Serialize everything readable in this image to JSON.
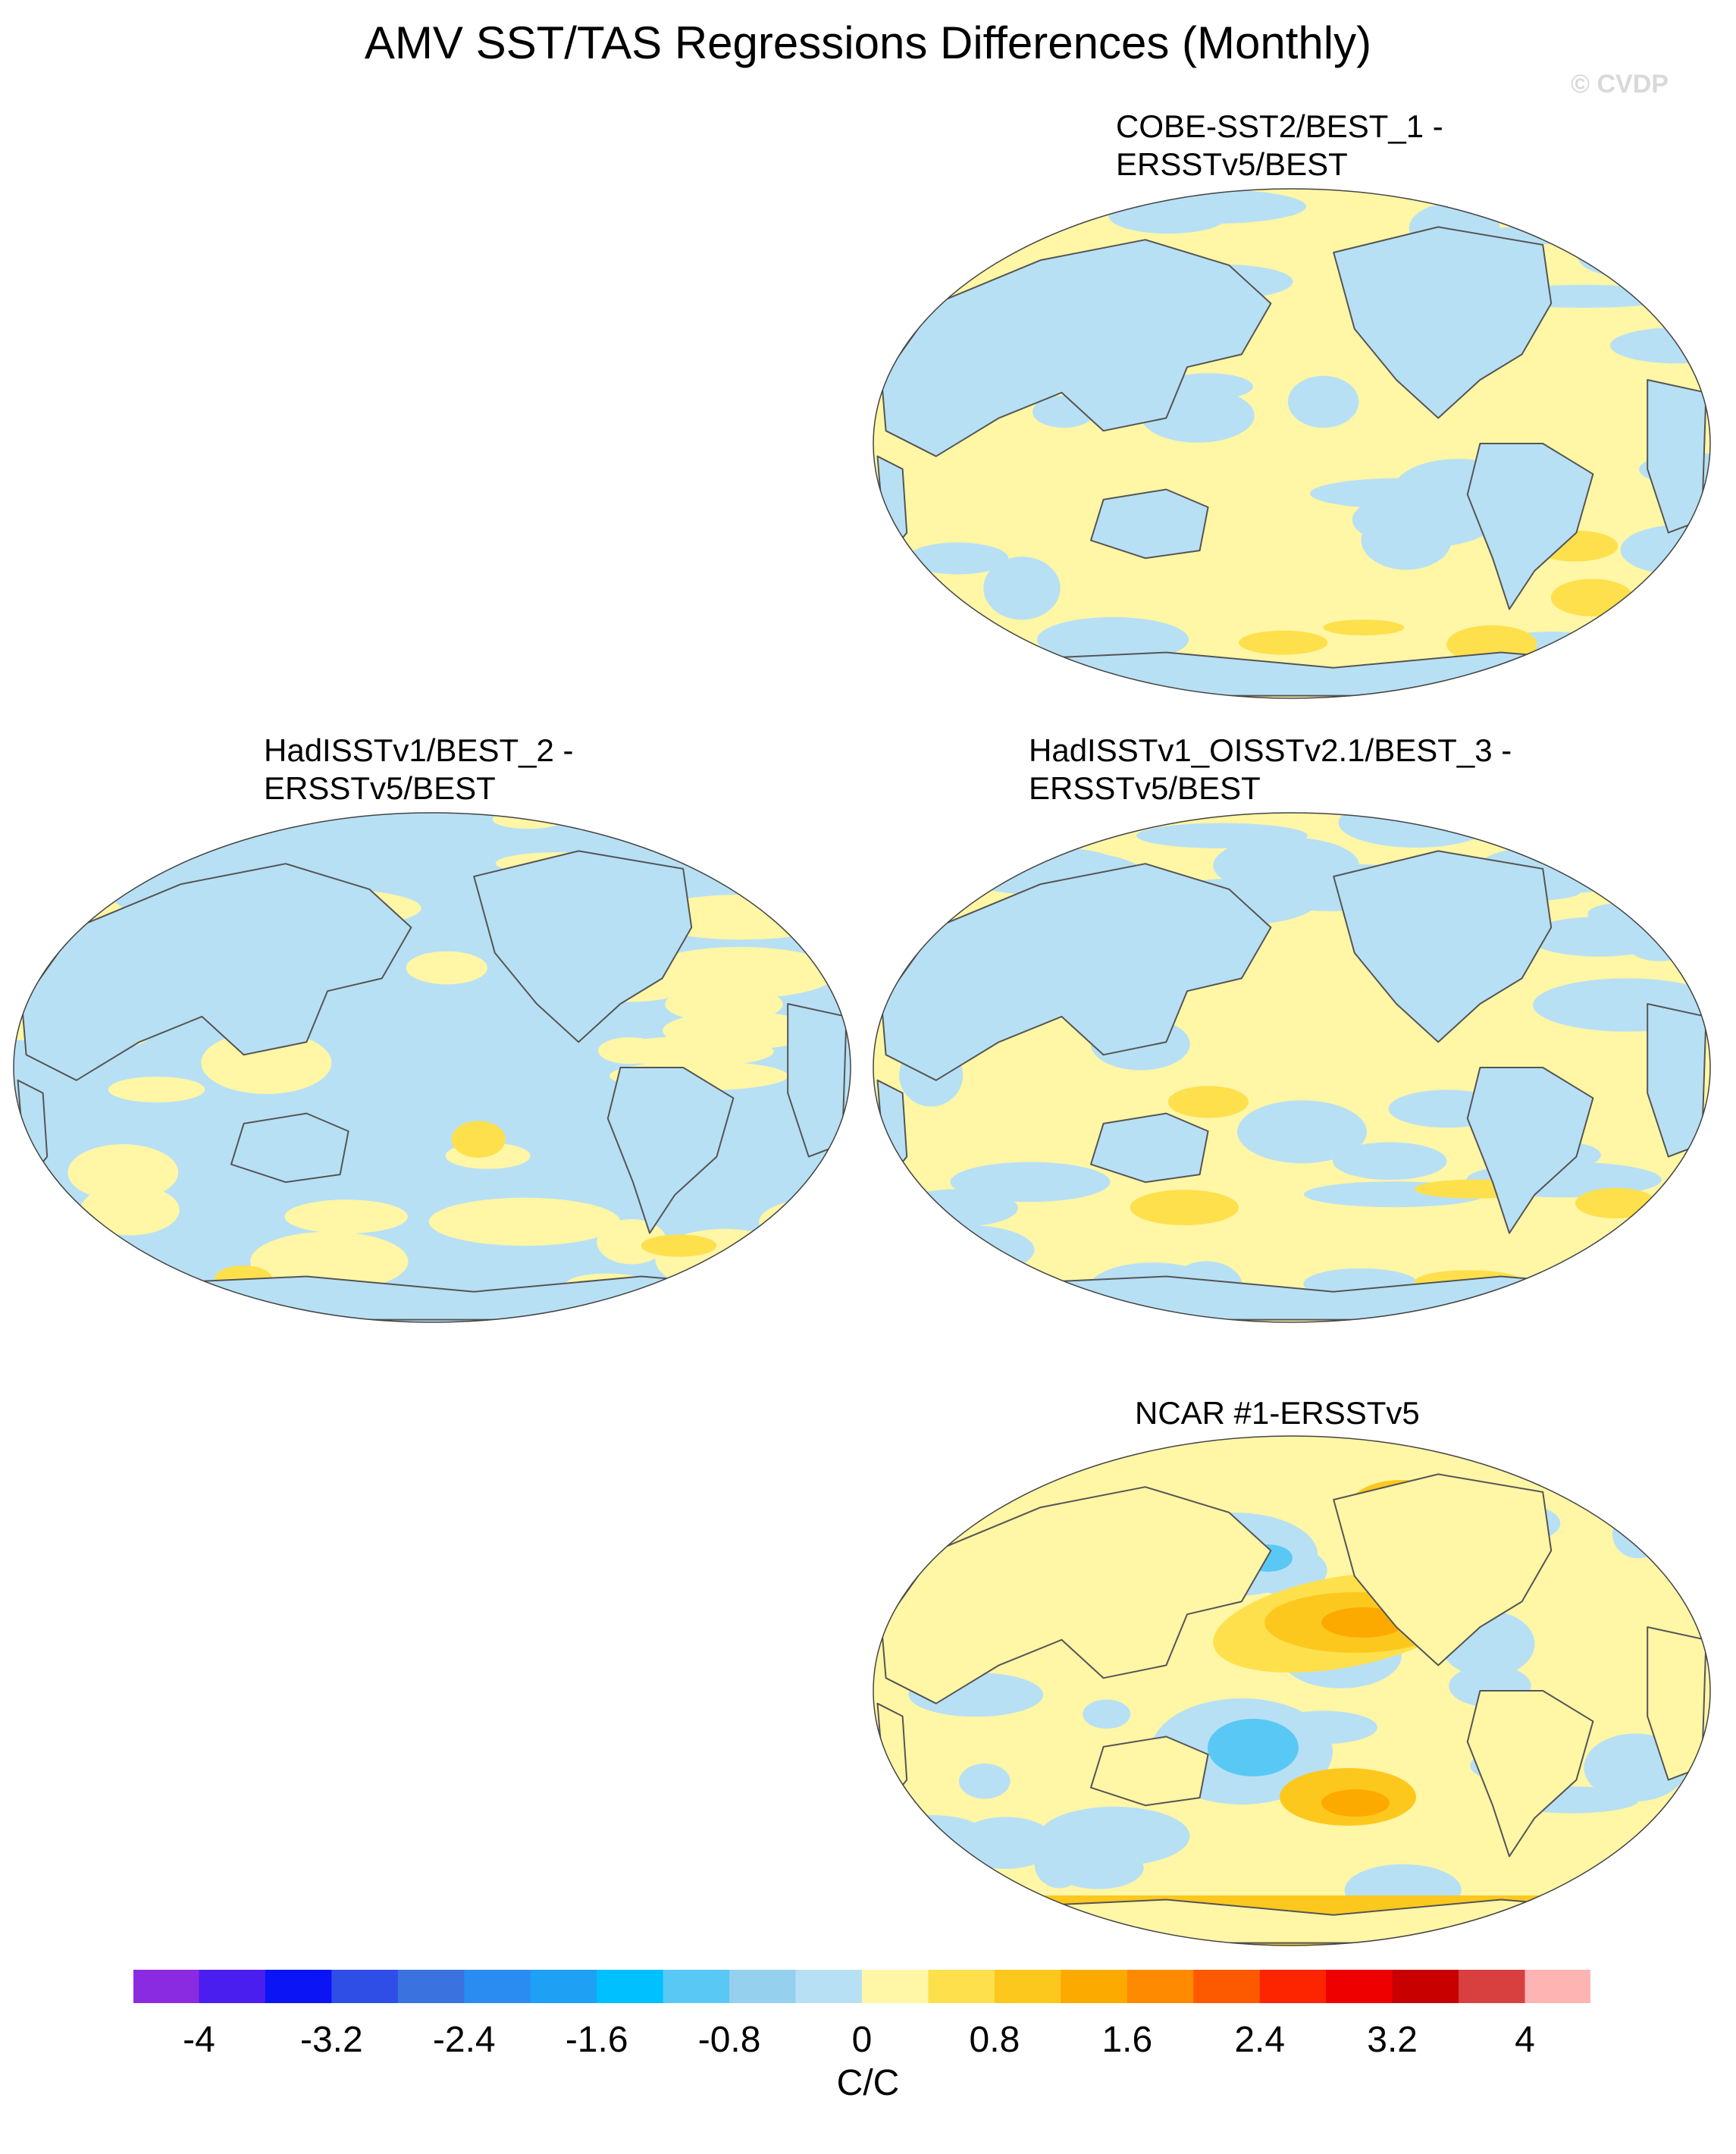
{
  "title": "AMV SST/TAS Regressions Differences (Monthly)",
  "watermark": "© CVDP",
  "panels": [
    {
      "label": "COBE-SST2/BEST_1 -\nERSSTv5/BEST",
      "pattern": "weak-positive-mixed"
    },
    {
      "label": "HadISSTv1/BEST_2 -\nERSSTv5/BEST",
      "pattern": "weak-negative-mixed"
    },
    {
      "label": "HadISSTv1_OISSTv2.1/BEST_3 -\nERSSTv5/BEST",
      "pattern": "weak-positive-mixed"
    },
    {
      "label": "NCAR #1-ERSSTv5",
      "pattern": "strong-pacific-dipole"
    }
  ],
  "colorbar": {
    "unit": "C/C",
    "tick_labels": [
      "-4",
      "-3.2",
      "-2.4",
      "-1.6",
      "-0.8",
      "0",
      "0.8",
      "1.6",
      "2.4",
      "3.2",
      "4"
    ],
    "colors": [
      "#8a2be2",
      "#4b1ef0",
      "#0a14f5",
      "#2e4ee6",
      "#3a72e0",
      "#2a8cf0",
      "#1ea0f5",
      "#00c0ff",
      "#5ac8f5",
      "#96d0ef",
      "#b8e0f4",
      "#fff6a6",
      "#fde04c",
      "#fdc81e",
      "#fdaa00",
      "#fd8a00",
      "#fd5a00",
      "#fd2400",
      "#ee0000",
      "#c80000",
      "#d84040",
      "#ffb4b4"
    ]
  },
  "map_colors": {
    "ocean_negative": "#b8e0f4",
    "ocean_positive": "#fff6a6",
    "moderate_positive": "#fde04c",
    "strong_positive": "#fdc81e",
    "very_strong_positive": "#fdaa00",
    "moderate_negative": "#5ac8f5",
    "coast": "#555555"
  }
}
